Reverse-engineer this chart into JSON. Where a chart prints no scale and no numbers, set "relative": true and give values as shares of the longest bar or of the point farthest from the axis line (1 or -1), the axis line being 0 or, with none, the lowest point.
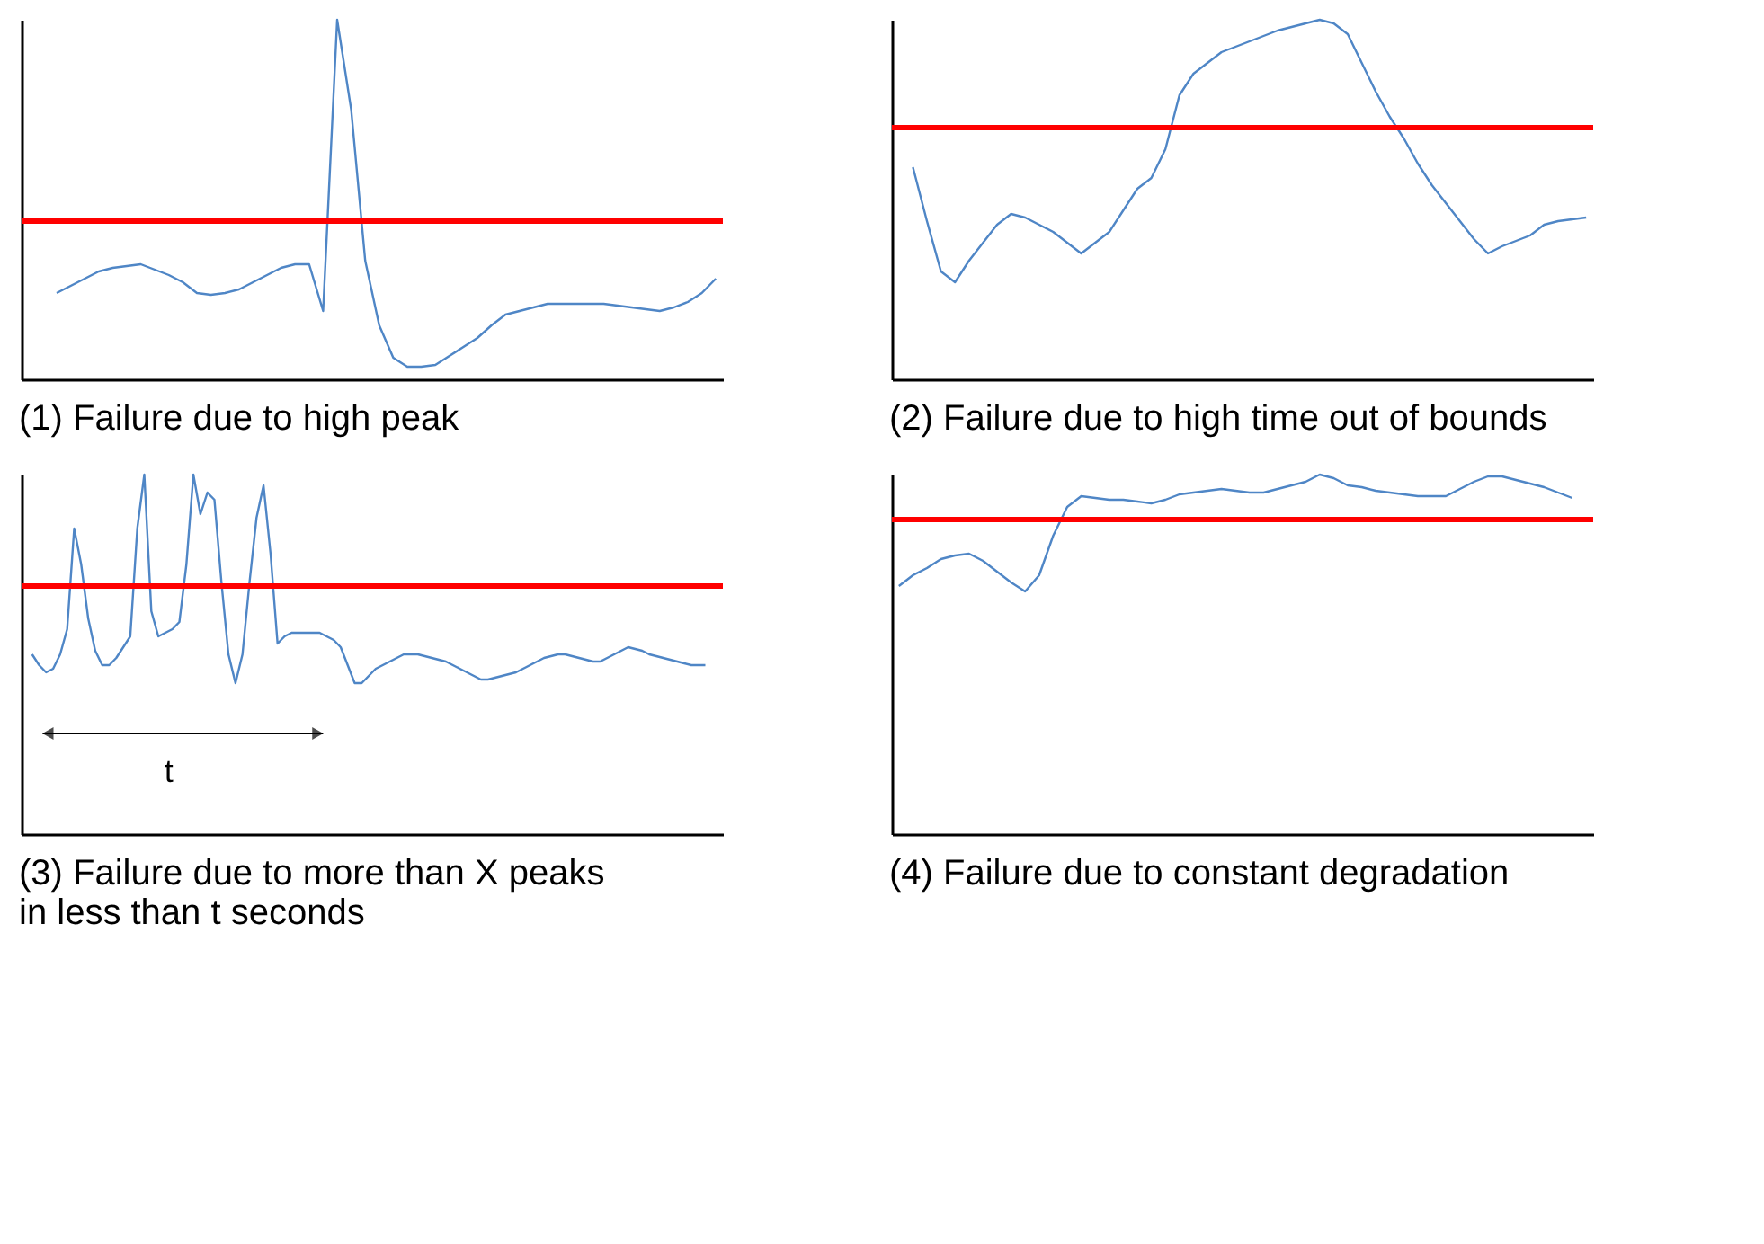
{
  "chart_data": [
    {
      "type": "line",
      "relative": true,
      "title": "(1) Failure due to high peak",
      "categories": [
        null,
        null,
        null,
        null,
        null,
        null,
        null,
        null,
        null,
        null,
        null,
        null,
        null,
        null,
        null,
        null,
        null,
        null,
        null,
        null,
        null,
        null,
        null,
        null,
        null,
        null,
        null,
        null,
        null,
        null,
        null,
        null,
        null,
        null,
        null,
        null,
        null,
        null,
        null,
        null,
        null,
        null,
        null,
        null,
        null,
        null,
        null,
        null,
        null,
        null
      ],
      "series": [
        {
          "color": "#4f86c6",
          "values": [
            null,
            null,
            0.24,
            0.26,
            0.28,
            0.3,
            0.31,
            0.315,
            0.32,
            0.305,
            0.29,
            0.27,
            0.24,
            0.235,
            0.24,
            0.25,
            0.27,
            0.29,
            0.31,
            0.32,
            0.32,
            0.19,
            1.0,
            0.75,
            0.33,
            0.15,
            0.06,
            0.035,
            0.035,
            0.04,
            0.065,
            0.09,
            0.115,
            0.15,
            0.18,
            0.19,
            0.2,
            0.21,
            0.21,
            0.21,
            0.21,
            0.21,
            0.205,
            0.2,
            0.195,
            0.19,
            0.2,
            0.215,
            0.24,
            0.28
          ]
        }
      ],
      "ref_lines": [
        {
          "axis": "y",
          "value": 0.44,
          "color": "#ff0000"
        }
      ]
    },
    {
      "type": "line",
      "relative": true,
      "title": "(2) Failure due to high time out of bounds",
      "categories": [
        null,
        null,
        null,
        null,
        null,
        null,
        null,
        null,
        null,
        null,
        null,
        null,
        null,
        null,
        null,
        null,
        null,
        null,
        null,
        null,
        null,
        null,
        null,
        null,
        null,
        null,
        null,
        null,
        null,
        null,
        null,
        null,
        null,
        null,
        null,
        null,
        null,
        null,
        null,
        null,
        null,
        null,
        null,
        null,
        null,
        null,
        null,
        null,
        null,
        null
      ],
      "series": [
        {
          "color": "#4f86c6",
          "values": [
            null,
            0.59,
            0.44,
            0.3,
            0.27,
            0.33,
            0.38,
            0.43,
            0.46,
            0.45,
            0.43,
            0.41,
            0.38,
            0.35,
            0.38,
            0.41,
            0.47,
            0.53,
            0.56,
            0.64,
            0.79,
            0.85,
            0.88,
            0.91,
            0.925,
            0.94,
            0.955,
            0.97,
            0.98,
            0.99,
            1.0,
            0.99,
            0.96,
            0.88,
            0.8,
            0.73,
            0.67,
            0.6,
            0.54,
            0.49,
            0.44,
            0.39,
            0.35,
            0.37,
            0.385,
            0.4,
            0.43,
            0.44,
            0.445,
            0.45
          ]
        }
      ],
      "ref_lines": [
        {
          "axis": "y",
          "value": 0.7,
          "color": "#ff0000"
        }
      ]
    },
    {
      "type": "line",
      "relative": true,
      "title": "(3) Failure due to more than X peaks\nin less than t seconds",
      "categories": [
        null,
        null,
        null,
        null,
        null,
        null,
        null,
        null,
        null,
        null,
        null,
        null,
        null,
        null,
        null,
        null,
        null,
        null,
        null,
        null,
        null,
        null,
        null,
        null,
        null,
        null,
        null,
        null,
        null,
        null,
        null,
        null,
        null,
        null,
        null,
        null,
        null,
        null,
        null,
        null,
        null,
        null,
        null,
        null,
        null,
        null,
        null,
        null,
        null,
        null,
        null,
        null,
        null,
        null,
        null,
        null,
        null,
        null,
        null,
        null,
        null,
        null,
        null,
        null,
        null,
        null,
        null,
        null,
        null,
        null,
        null,
        null,
        null,
        null,
        null,
        null,
        null,
        null,
        null,
        null,
        null,
        null,
        null,
        null,
        null,
        null,
        null,
        null,
        null,
        null,
        null,
        null,
        null,
        null,
        null,
        null,
        null,
        null,
        null,
        null
      ],
      "series": [
        {
          "color": "#4f86c6",
          "values": [
            null,
            0.5,
            0.47,
            0.45,
            0.46,
            0.5,
            0.57,
            0.85,
            0.75,
            0.6,
            0.51,
            0.47,
            0.47,
            0.49,
            0.52,
            0.55,
            0.85,
            1.0,
            0.62,
            0.55,
            0.56,
            0.57,
            0.59,
            0.75,
            1.0,
            0.89,
            0.95,
            0.93,
            0.7,
            0.5,
            0.42,
            0.5,
            0.7,
            0.88,
            0.97,
            0.78,
            0.53,
            0.55,
            0.56,
            0.56,
            0.56,
            0.56,
            0.56,
            0.55,
            0.54,
            0.52,
            0.47,
            0.42,
            0.42,
            0.44,
            0.46,
            0.47,
            0.48,
            0.49,
            0.5,
            0.5,
            0.5,
            0.495,
            0.49,
            0.485,
            0.48,
            0.47,
            0.46,
            0.45,
            0.44,
            0.43,
            0.43,
            0.435,
            0.44,
            0.445,
            0.45,
            0.46,
            0.47,
            0.48,
            0.49,
            0.495,
            0.5,
            0.5,
            0.495,
            0.49,
            0.485,
            0.48,
            0.48,
            0.49,
            0.5,
            0.51,
            0.52,
            0.515,
            0.51,
            0.5,
            0.495,
            0.49,
            0.485,
            0.48,
            0.475,
            0.47,
            0.47,
            0.47,
            null,
            null
          ]
        }
      ],
      "ref_lines": [
        {
          "axis": "y",
          "value": 0.69,
          "color": "#ff0000"
        }
      ],
      "annotations": [
        "t"
      ]
    },
    {
      "type": "line",
      "relative": true,
      "title": "(4) Failure due to constant degradation",
      "categories": [
        null,
        null,
        null,
        null,
        null,
        null,
        null,
        null,
        null,
        null,
        null,
        null,
        null,
        null,
        null,
        null,
        null,
        null,
        null,
        null,
        null,
        null,
        null,
        null,
        null,
        null,
        null,
        null,
        null,
        null,
        null,
        null,
        null,
        null,
        null,
        null,
        null,
        null,
        null,
        null,
        null,
        null,
        null,
        null,
        null,
        null,
        null,
        null,
        null,
        null
      ],
      "series": [
        {
          "color": "#4f86c6",
          "values": [
            0.69,
            0.72,
            0.74,
            0.765,
            0.775,
            0.78,
            0.76,
            0.73,
            0.7,
            0.675,
            0.72,
            0.83,
            0.91,
            0.94,
            0.935,
            0.93,
            0.93,
            0.925,
            0.92,
            0.93,
            0.945,
            0.95,
            0.955,
            0.96,
            0.955,
            0.95,
            0.95,
            0.96,
            0.97,
            0.98,
            1.0,
            0.99,
            0.97,
            0.965,
            0.955,
            0.95,
            0.945,
            0.94,
            0.94,
            0.94,
            0.96,
            0.98,
            0.995,
            0.995,
            0.985,
            0.975,
            0.965,
            0.95,
            0.935,
            null
          ]
        }
      ],
      "ref_lines": [
        {
          "axis": "y",
          "value": 0.875,
          "color": "#ff0000"
        }
      ]
    }
  ]
}
